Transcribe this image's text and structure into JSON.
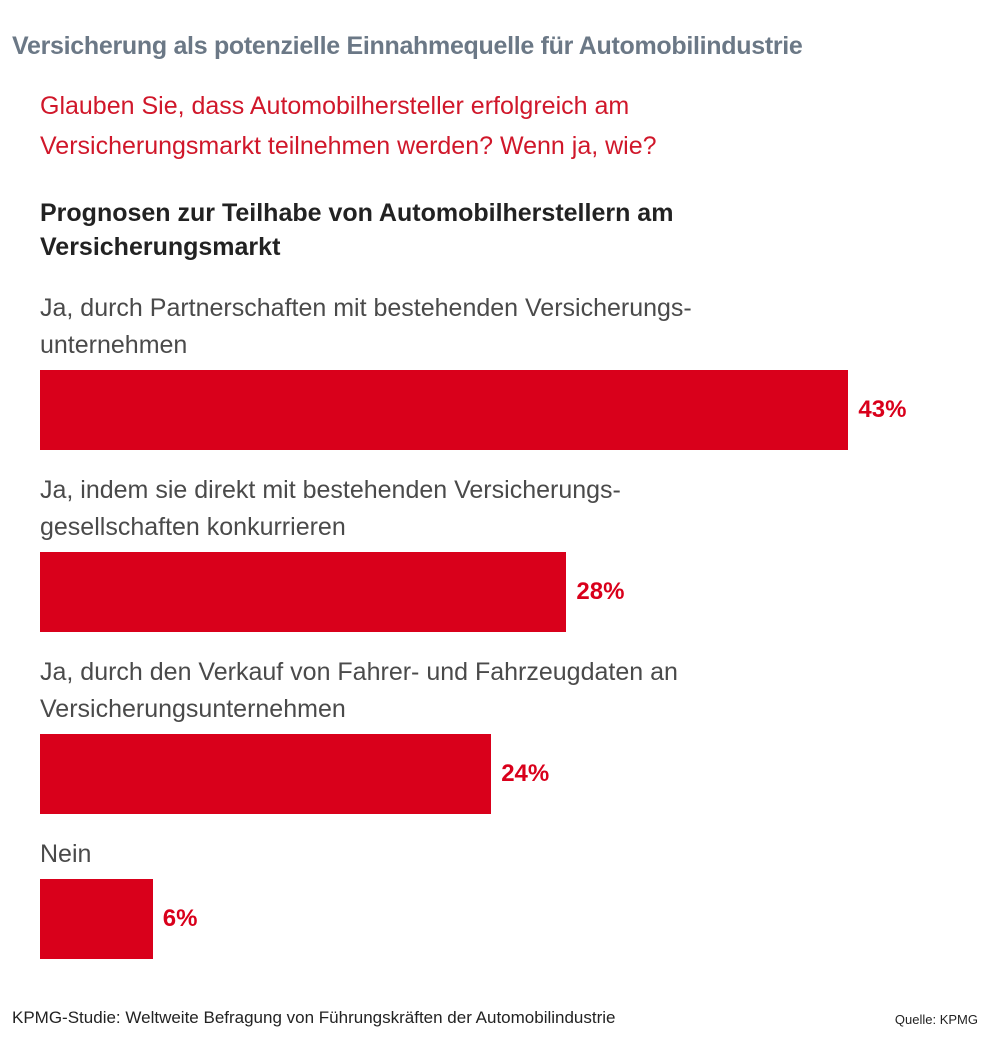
{
  "chart_data": {
    "type": "bar",
    "title": "Versicherung als potenzielle Einnahmequelle für Automobilindustrie",
    "subtitle": "Glauben Sie, dass Automobilhersteller erfolgreich am\nVersicherungsmarkt teilnehmen werden? Wenn ja, wie?",
    "heading": "Prognosen zur Teilhabe von Automobilherstellern am\nVersicherungsmarkt",
    "categories": [
      "Ja, durch Partnerschaften mit bestehenden Versicherungs-\nunternehmen",
      "Ja, indem sie direkt mit bestehenden Versicherungs-\ngesellschaften konkurrieren",
      "Ja, durch den Verkauf von Fahrer- und Fahrzeugdaten an\nVersicherungsunternehmen",
      "Nein"
    ],
    "values": [
      43,
      28,
      24,
      6
    ],
    "value_labels": [
      "43%",
      "28%",
      "24%",
      "6%"
    ],
    "color": "#d9001b",
    "footer": "KPMG-Studie: Weltweite Befragung von Führungskräften der Automobilindustrie",
    "source": "Quelle: KPMG"
  }
}
